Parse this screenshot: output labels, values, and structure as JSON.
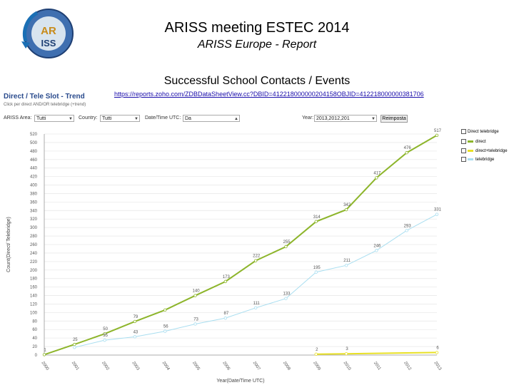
{
  "header": {
    "title": "ARISS meeting ESTEC 2014",
    "subtitle": "ARISS Europe - Report",
    "section": "Successful School Contacts / Events",
    "link": "https://reports.zoho.com/ZDBDataSheetView.cc?DBID=412218000000204158OBJID=412218000000381706",
    "logo_text_top": "AR",
    "logo_text_bottom": "ISS"
  },
  "screenshot": {
    "title": "Direct / Tele Slot - Trend",
    "hint": "Click per direct AND/OR telebridge (+trend)",
    "controls": {
      "ariss_label": "ARISS Area:",
      "ariss_value": "Tutti",
      "country_label": "Country:",
      "country_value": "Tutti",
      "date_label": "Date/Time UTC:",
      "date_value": "Da",
      "year_label": "Year:",
      "year_value": "2013,2012,201",
      "apply_label": "Reimposta"
    }
  },
  "legend": [
    {
      "label": "Direct telebridge",
      "color": "#8db52b"
    },
    {
      "label": "direct",
      "color": "#8db52b"
    },
    {
      "label": "direct+telebridge",
      "color": "#e8e024"
    },
    {
      "label": "telebridge",
      "color": "#a9def0"
    }
  ],
  "chart_data": {
    "type": "line",
    "ylabel": "Count(Direct/ Telebridge)",
    "xlabel": "Year(Date/Time UTC)",
    "ylim": [
      0,
      520
    ],
    "yticks": [
      0,
      20,
      40,
      60,
      80,
      100,
      120,
      140,
      160,
      180,
      200,
      220,
      240,
      260,
      280,
      300,
      320,
      340,
      360,
      380,
      400,
      420,
      440,
      460,
      480,
      500,
      520
    ],
    "categories": [
      "2000",
      "2001",
      "2002",
      "2003",
      "2004",
      "2005",
      "2006",
      "2007",
      "2008",
      "2009",
      "2010",
      "2011",
      "2012",
      "2013"
    ],
    "series": [
      {
        "name": "direct",
        "color": "#8db52b",
        "values": [
          1,
          25,
          50,
          79,
          106,
          140,
          173,
          222,
          255,
          314,
          342,
          417,
          476,
          517
        ],
        "labels": [
          "1",
          "25",
          "50",
          "79",
          "",
          "140",
          "173",
          "222",
          "255",
          "314",
          "342",
          "417",
          "476",
          "517"
        ]
      },
      {
        "name": "telebridge",
        "color": "#a9def0",
        "values": [
          null,
          18,
          35,
          43,
          56,
          73,
          87,
          111,
          133,
          195,
          211,
          246,
          293,
          331
        ],
        "labels": [
          "",
          "",
          "35",
          "43",
          "56",
          "73",
          "87",
          "111",
          "133",
          "195",
          "211",
          "246",
          "293",
          "331"
        ]
      },
      {
        "name": "direct+telebridge",
        "color": "#e8e024",
        "values": [
          null,
          null,
          null,
          null,
          null,
          null,
          null,
          null,
          null,
          2,
          3,
          null,
          null,
          6
        ],
        "labels": [
          "",
          "",
          "",
          "",
          "",
          "",
          "",
          "",
          "",
          "2",
          "3",
          "",
          "",
          "6"
        ]
      }
    ]
  }
}
